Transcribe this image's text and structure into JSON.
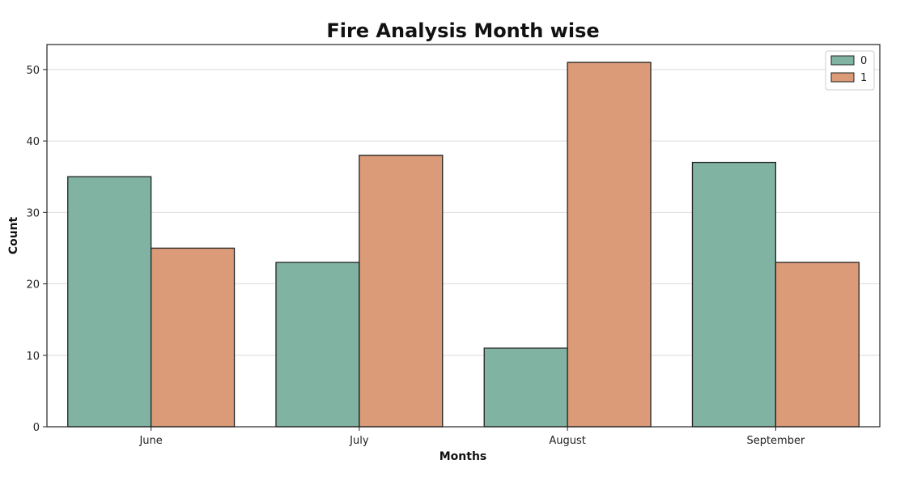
{
  "chart_data": {
    "type": "bar",
    "title": "Fire Analysis Month wise",
    "xlabel": "Months",
    "ylabel": "Count",
    "categories": [
      "June",
      "July",
      "August",
      "September"
    ],
    "series": [
      {
        "name": "0",
        "values": [
          35,
          23,
          11,
          37
        ],
        "color": "#80b3a1"
      },
      {
        "name": "1",
        "values": [
          25,
          38,
          51,
          23
        ],
        "color": "#db9a78"
      }
    ],
    "ylim": [
      0,
      53.5
    ],
    "yticks": [
      0,
      10,
      20,
      30,
      40,
      50
    ],
    "grid": "y",
    "legend_position": "top-right"
  }
}
